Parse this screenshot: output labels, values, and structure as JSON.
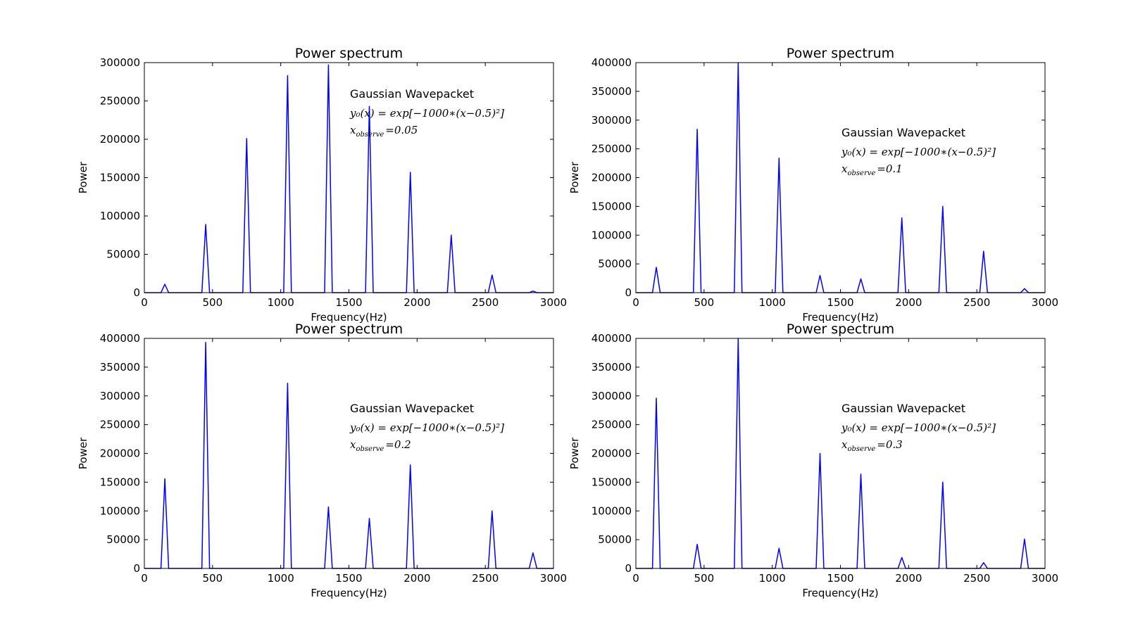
{
  "series_color": "#0000ff",
  "chart_data": [
    {
      "type": "line",
      "title": "Power spectrum",
      "xlabel": "Frequency(Hz)",
      "ylabel": "Power",
      "xlim": [
        0,
        3000
      ],
      "ylim": [
        0,
        300000
      ],
      "xticks": [
        0,
        500,
        1000,
        1500,
        2000,
        2500,
        3000
      ],
      "yticks": [
        0,
        50000,
        100000,
        150000,
        200000,
        250000,
        300000
      ],
      "grid": false,
      "annotation": {
        "title": "Gaussian Wavepacket",
        "formula": "y₀(x) = exp[−1000∗(x−0.5)²]",
        "x_obs_label": "x",
        "x_obs_sub": "observe",
        "x_obs_value": "=0.05"
      },
      "peaks": [
        {
          "x": 150,
          "y": 11000
        },
        {
          "x": 450,
          "y": 89000
        },
        {
          "x": 750,
          "y": 201000
        },
        {
          "x": 1050,
          "y": 283000
        },
        {
          "x": 1350,
          "y": 297000
        },
        {
          "x": 1650,
          "y": 243000
        },
        {
          "x": 1950,
          "y": 157000
        },
        {
          "x": 2250,
          "y": 75000
        },
        {
          "x": 2550,
          "y": 23000
        },
        {
          "x": 2850,
          "y": 2000
        }
      ]
    },
    {
      "type": "line",
      "title": "Power spectrum",
      "xlabel": "Frequency(Hz)",
      "ylabel": "Power",
      "xlim": [
        0,
        3000
      ],
      "ylim": [
        0,
        400000
      ],
      "xticks": [
        0,
        500,
        1000,
        1500,
        2000,
        2500,
        3000
      ],
      "yticks": [
        0,
        50000,
        100000,
        150000,
        200000,
        250000,
        300000,
        350000,
        400000
      ],
      "grid": false,
      "annotation": {
        "title": "Gaussian Wavepacket",
        "formula": "y₀(x) = exp[−1000∗(x−0.5)²]",
        "x_obs_label": "x",
        "x_obs_sub": "observe",
        "x_obs_value": "=0.1"
      },
      "peaks": [
        {
          "x": 150,
          "y": 44000
        },
        {
          "x": 450,
          "y": 284000
        },
        {
          "x": 750,
          "y": 400000
        },
        {
          "x": 1050,
          "y": 234000
        },
        {
          "x": 1350,
          "y": 30000
        },
        {
          "x": 1650,
          "y": 24000
        },
        {
          "x": 1950,
          "y": 130000
        },
        {
          "x": 2250,
          "y": 150000
        },
        {
          "x": 2550,
          "y": 72000
        },
        {
          "x": 2850,
          "y": 7000
        }
      ]
    },
    {
      "type": "line",
      "title": "Power spectrum",
      "xlabel": "Frequency(Hz)",
      "ylabel": "Power",
      "xlim": [
        0,
        3000
      ],
      "ylim": [
        0,
        400000
      ],
      "xticks": [
        0,
        500,
        1000,
        1500,
        2000,
        2500,
        3000
      ],
      "yticks": [
        0,
        50000,
        100000,
        150000,
        200000,
        250000,
        300000,
        350000,
        400000
      ],
      "grid": false,
      "annotation": {
        "title": "Gaussian Wavepacket",
        "formula": "y₀(x) = exp[−1000∗(x−0.5)²]",
        "x_obs_label": "x",
        "x_obs_sub": "observe",
        "x_obs_value": "=0.2"
      },
      "peaks": [
        {
          "x": 150,
          "y": 156000
        },
        {
          "x": 450,
          "y": 393000
        },
        {
          "x": 750,
          "y": 0
        },
        {
          "x": 1050,
          "y": 322000
        },
        {
          "x": 1350,
          "y": 107000
        },
        {
          "x": 1650,
          "y": 87000
        },
        {
          "x": 1950,
          "y": 180000
        },
        {
          "x": 2250,
          "y": 0
        },
        {
          "x": 2550,
          "y": 100000
        },
        {
          "x": 2850,
          "y": 27000
        }
      ]
    },
    {
      "type": "line",
      "title": "Power spectrum",
      "xlabel": "Frequency(Hz)",
      "ylabel": "Power",
      "xlim": [
        0,
        3000
      ],
      "ylim": [
        0,
        400000
      ],
      "xticks": [
        0,
        500,
        1000,
        1500,
        2000,
        2500,
        3000
      ],
      "yticks": [
        0,
        50000,
        100000,
        150000,
        200000,
        250000,
        300000,
        350000,
        400000
      ],
      "grid": false,
      "annotation": {
        "title": "Gaussian Wavepacket",
        "formula": "y₀(x) = exp[−1000∗(x−0.5)²]",
        "x_obs_label": "x",
        "x_obs_sub": "observe",
        "x_obs_value": "=0.3"
      },
      "peaks": [
        {
          "x": 150,
          "y": 296000
        },
        {
          "x": 450,
          "y": 42000
        },
        {
          "x": 750,
          "y": 400000
        },
        {
          "x": 1050,
          "y": 35000
        },
        {
          "x": 1350,
          "y": 200000
        },
        {
          "x": 1650,
          "y": 164000
        },
        {
          "x": 1950,
          "y": 19000
        },
        {
          "x": 2250,
          "y": 150000
        },
        {
          "x": 2550,
          "y": 10000
        },
        {
          "x": 2850,
          "y": 51000
        }
      ]
    }
  ]
}
